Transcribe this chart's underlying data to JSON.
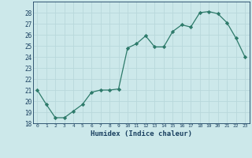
{
  "x": [
    0,
    1,
    2,
    3,
    4,
    5,
    6,
    7,
    8,
    9,
    10,
    11,
    12,
    13,
    14,
    15,
    16,
    17,
    18,
    19,
    20,
    21,
    22,
    23
  ],
  "y": [
    21.0,
    19.7,
    18.5,
    18.5,
    19.1,
    19.7,
    20.8,
    21.0,
    21.0,
    21.1,
    24.8,
    25.2,
    25.9,
    24.9,
    24.9,
    26.3,
    26.9,
    26.7,
    28.0,
    28.1,
    27.9,
    27.1,
    25.7,
    24.0
  ],
  "line_color": "#2d7a6a",
  "marker": "D",
  "marker_size": 2.2,
  "bg_color": "#cce8ea",
  "grid_color": "#b8d8db",
  "xlabel": "Humidex (Indice chaleur)",
  "tick_color": "#1a4060",
  "ylim": [
    18,
    29
  ],
  "xlim": [
    -0.5,
    23.5
  ],
  "yticks": [
    18,
    19,
    20,
    21,
    22,
    23,
    24,
    25,
    26,
    27,
    28
  ],
  "xticks": [
    0,
    1,
    2,
    3,
    4,
    5,
    6,
    7,
    8,
    9,
    10,
    11,
    12,
    13,
    14,
    15,
    16,
    17,
    18,
    19,
    20,
    21,
    22,
    23
  ]
}
